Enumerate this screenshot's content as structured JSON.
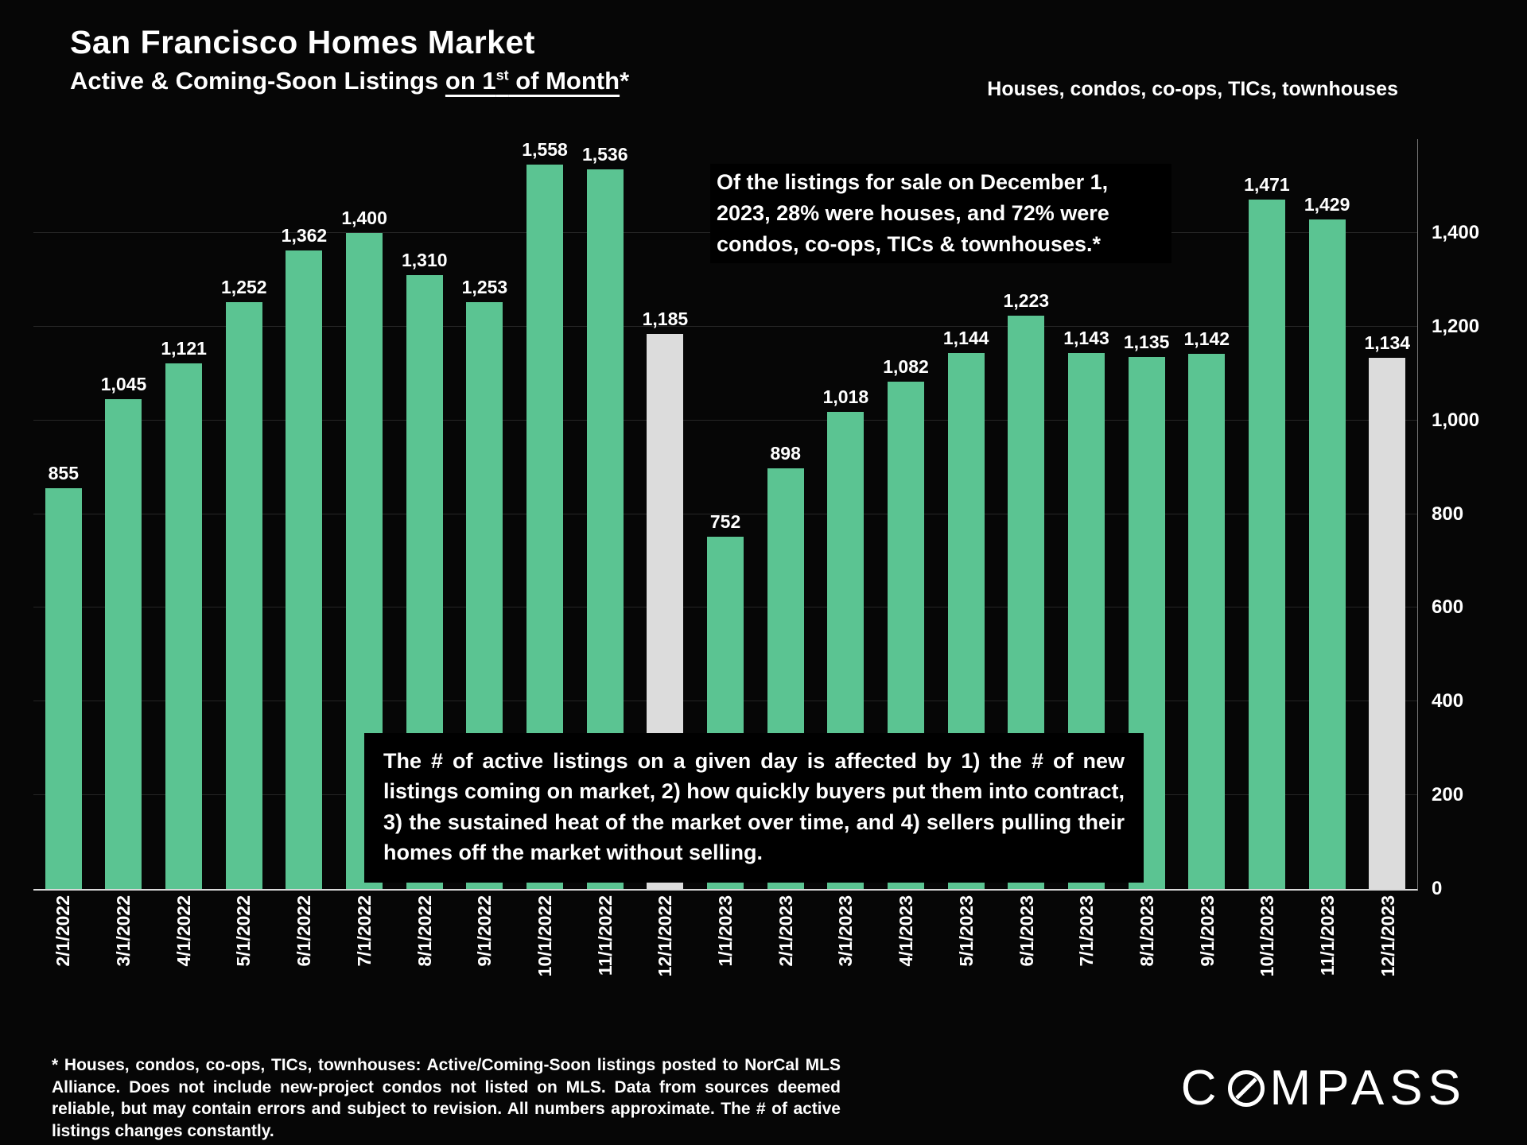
{
  "header": {
    "title": "San Francisco Homes Market",
    "subtitle": {
      "prefix": "Active & Coming-Soon Listings ",
      "underline_pre": "on 1",
      "underline_sup": "st",
      "underline_post": " of Month",
      "suffix": "*"
    },
    "top_right_note": "Houses, condos, co-ops, TICs, townhouses"
  },
  "annotations": {
    "december_note": "Of the listings for sale on December 1, 2023, 28% were houses, and 72% were condos, co-ops, TICs & townhouses.*",
    "active_listings_note": "The # of active listings on a given day is affected by 1) the # of new listings coming on market, 2) how quickly buyers put them into contract, 3) the sustained heat of the market over time, and 4) sellers pulling their homes off the market without selling."
  },
  "footnote": "* Houses, condos, co-ops, TICs, townhouses: Active/Coming-Soon listings posted to NorCal MLS Alliance. Does not include new-project condos not listed on MLS. Data from sources deemed reliable, but may contain errors and subject to revision. All numbers approximate. The # of active listings changes constantly.",
  "logo": {
    "text": "COMPASS",
    "prefix": "C",
    "suffix": "MPASS"
  },
  "colors": {
    "background": "#060606",
    "bar_green": "#5BC492",
    "bar_highlight": "#DCDCDC",
    "text": "#FFFFFF"
  },
  "chart_data": {
    "type": "bar",
    "title": "San Francisco Homes Market — Active & Coming-Soon Listings on 1st of Month",
    "categories": [
      "2/1/2022",
      "3/1/2022",
      "4/1/2022",
      "5/1/2022",
      "6/1/2022",
      "7/1/2022",
      "8/1/2022",
      "9/1/2022",
      "10/1/2022",
      "11/1/2022",
      "12/1/2022",
      "1/1/2023",
      "2/1/2023",
      "3/1/2023",
      "4/1/2023",
      "5/1/2023",
      "6/1/2023",
      "7/1/2023",
      "8/1/2023",
      "9/1/2023",
      "10/1/2023",
      "11/1/2023",
      "12/1/2023"
    ],
    "values": [
      855,
      1045,
      1121,
      1252,
      1362,
      1400,
      1310,
      1253,
      1558,
      1536,
      1185,
      752,
      898,
      1018,
      1082,
      1144,
      1223,
      1143,
      1135,
      1142,
      1471,
      1429,
      1134
    ],
    "highlight_indices": [
      10,
      22
    ],
    "bar_color": "#5BC492",
    "highlight_color": "#DCDCDC",
    "xlabel": "",
    "ylabel": "",
    "ylim": [
      0,
      1600
    ],
    "yticks": [
      0,
      200,
      400,
      600,
      800,
      1000,
      1200,
      1400
    ],
    "ytick_labels": [
      "0",
      "200",
      "400",
      "600",
      "800",
      "1,000",
      "1,200",
      "1,400"
    ],
    "grid": true,
    "legend_position": "none",
    "y_axis_side": "right"
  }
}
